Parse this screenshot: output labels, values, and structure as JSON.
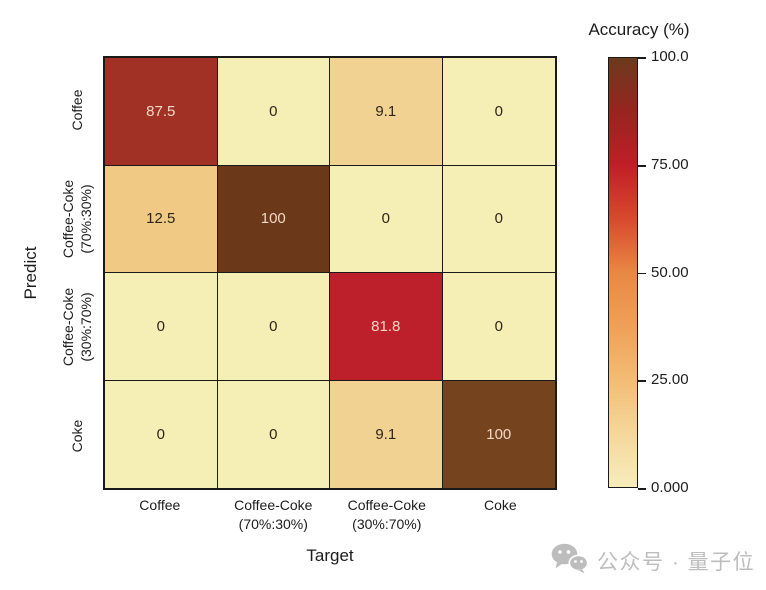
{
  "chart_data": {
    "type": "heatmap",
    "xlabel": "Target",
    "ylabel": "Predict",
    "x_categories": [
      [
        "Coffee"
      ],
      [
        "Coffee-Coke",
        "(70%:30%)"
      ],
      [
        "Coffee-Coke",
        "(30%:70%)"
      ],
      [
        "Coke"
      ]
    ],
    "y_categories": [
      [
        "Coffee"
      ],
      [
        "Coffee-Coke",
        "(70%:30%)"
      ],
      [
        "Coffee-Coke",
        "(30%:70%)"
      ],
      [
        "Coke"
      ]
    ],
    "matrix": [
      [
        87.5,
        0,
        9.1,
        0
      ],
      [
        12.5,
        100,
        0,
        0
      ],
      [
        0,
        0,
        81.8,
        0
      ],
      [
        0,
        0,
        9.1,
        100
      ]
    ],
    "cell_labels": [
      [
        "87.5",
        "0",
        "9.1",
        "0"
      ],
      [
        "12.5",
        "100",
        "0",
        "0"
      ],
      [
        "0",
        "0",
        "81.8",
        "0"
      ],
      [
        "0",
        "0",
        "9.1",
        "100"
      ]
    ],
    "cell_colors": [
      [
        "#a23125",
        "#f5eeb5",
        "#f1d292",
        "#f5eeb5"
      ],
      [
        "#f0ca85",
        "#6b3919",
        "#f5eeb5",
        "#f5eeb5"
      ],
      [
        "#f5eeb5",
        "#f5eeb5",
        "#bd202a",
        "#f5eeb5"
      ],
      [
        "#f5eeb5",
        "#f5eeb5",
        "#f1d292",
        "#76431f"
      ]
    ],
    "grid_on": true,
    "legend_position": "right",
    "colorbar": {
      "title": "Accuracy (%)",
      "range": [
        0,
        100
      ],
      "ticks": [
        "100.0",
        "75.00",
        "50.00",
        "25.00",
        "0.000"
      ],
      "gradient_top_to_bottom": [
        "#6b3a1d",
        "#96251e",
        "#c11e27",
        "#d8492e",
        "#e88843",
        "#efa057",
        "#f3bc75",
        "#f5d79b",
        "#f6edbb"
      ]
    }
  },
  "style": {
    "grid_line_color": "#1a1a1a",
    "cell_text_light": "#f2d8c2",
    "cell_text_dark": "#2e2617"
  },
  "watermark": {
    "icon": "wechat-icon",
    "text": "公众号 · 量子位",
    "color": "#bdbdbd"
  }
}
